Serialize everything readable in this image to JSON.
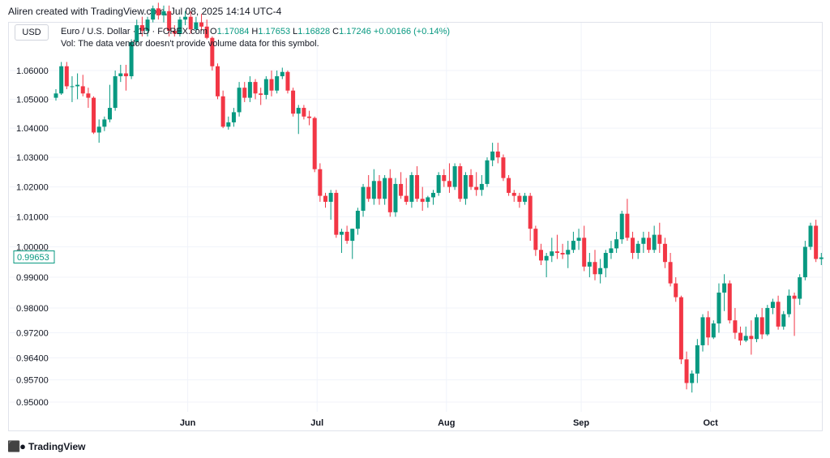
{
  "header": {
    "text": "Aliren created with TradingView.com, Jul 08, 2025 14:14 UTC-4"
  },
  "axis_currency": "USD",
  "legend": {
    "symbol": "Euro / U.S. Dollar · 1D · FOREX.com",
    "open_label": "O",
    "open_value": "1.17084",
    "high_label": "H",
    "high_value": "1.17653",
    "low_label": "L",
    "low_value": "1.16828",
    "close_label": "C",
    "close_value": "1.17246",
    "change": "+0.00166 (+0.14%)",
    "volume_note": "Vol: The data vendor doesn't provide volume data for this symbol."
  },
  "footer": {
    "brand": "TradingView",
    "icon": "tradingview-logo-icon"
  },
  "colors": {
    "up": "#089981",
    "down": "#f23645",
    "grid": "#f0f3fa",
    "last_price": "#089981"
  },
  "chart_data": {
    "type": "candlestick",
    "x_labels": [
      {
        "label": "Jun",
        "index": 24
      },
      {
        "label": "Jul",
        "index": 48
      },
      {
        "label": "Aug",
        "index": 72
      },
      {
        "label": "Sep",
        "index": 97
      },
      {
        "label": "Oct",
        "index": 121
      }
    ],
    "y_ticks": [
      {
        "label": "1.06000",
        "value": 1.06
      },
      {
        "label": "1.05000",
        "value": 1.05
      },
      {
        "label": "1.04000",
        "value": 1.04
      },
      {
        "label": "1.03000",
        "value": 1.03
      },
      {
        "label": "1.02000",
        "value": 1.02
      },
      {
        "label": "1.01000",
        "value": 1.01
      },
      {
        "label": "1.00000",
        "value": 1.0
      },
      {
        "label": "0.99000",
        "value": 0.99
      },
      {
        "label": "0.98000",
        "value": 0.98
      },
      {
        "label": "0.97200",
        "value": 0.972
      },
      {
        "label": "0.96400",
        "value": 0.964
      },
      {
        "label": "0.95700",
        "value": 0.957
      },
      {
        "label": "0.95000",
        "value": 0.95
      }
    ],
    "last_price": "0.99653",
    "last_price_value": 0.99653,
    "scale": "log",
    "grid": true,
    "candles": [
      [
        1.0505,
        1.0535,
        1.0495,
        1.052
      ],
      [
        1.052,
        1.063,
        1.0515,
        1.0615
      ],
      [
        1.0615,
        1.063,
        1.0535,
        1.0545
      ],
      [
        1.0545,
        1.058,
        1.049,
        1.0545
      ],
      [
        1.0545,
        1.059,
        1.05,
        1.055
      ],
      [
        1.0545,
        1.0585,
        1.051,
        1.052
      ],
      [
        1.052,
        1.054,
        1.047,
        1.0505
      ],
      [
        1.0505,
        1.051,
        1.038,
        1.0385
      ],
      [
        1.0385,
        1.043,
        1.035,
        1.0405
      ],
      [
        1.0405,
        1.044,
        1.039,
        1.043
      ],
      [
        1.043,
        1.055,
        1.042,
        1.047
      ],
      [
        1.047,
        1.06,
        1.046,
        1.058
      ],
      [
        1.058,
        1.062,
        1.056,
        1.059
      ],
      [
        1.059,
        1.062,
        1.053,
        1.058
      ],
      [
        1.058,
        1.071,
        1.057,
        1.07
      ],
      [
        1.07,
        1.078,
        1.069,
        1.076
      ],
      [
        1.076,
        1.079,
        1.072,
        1.074
      ],
      [
        1.074,
        1.079,
        1.072,
        1.078
      ],
      [
        1.078,
        1.083,
        1.077,
        1.082
      ],
      [
        1.082,
        1.084,
        1.078,
        1.0795
      ],
      [
        1.0795,
        1.083,
        1.077,
        1.081
      ],
      [
        1.081,
        1.083,
        1.072,
        1.074
      ],
      [
        1.074,
        1.076,
        1.072,
        1.073
      ],
      [
        1.073,
        1.079,
        1.072,
        1.078
      ],
      [
        1.078,
        1.081,
        1.076,
        1.079
      ],
      [
        1.079,
        1.081,
        1.073,
        1.0745
      ],
      [
        1.0745,
        1.079,
        1.0735,
        1.077
      ],
      [
        1.077,
        1.08,
        1.074,
        1.0755
      ],
      [
        1.0755,
        1.078,
        1.071,
        1.0715
      ],
      [
        1.0715,
        1.072,
        1.06,
        1.0615
      ],
      [
        1.0615,
        1.0625,
        1.05,
        1.051
      ],
      [
        1.051,
        1.053,
        1.04,
        1.0405
      ],
      [
        1.0405,
        1.044,
        1.0395,
        1.042
      ],
      [
        1.042,
        1.047,
        1.0405,
        1.0455
      ],
      [
        1.0455,
        1.056,
        1.044,
        1.054
      ],
      [
        1.054,
        1.056,
        1.049,
        1.0505
      ],
      [
        1.0505,
        1.058,
        1.049,
        1.056
      ],
      [
        1.056,
        1.057,
        1.05,
        1.052
      ],
      [
        1.052,
        1.054,
        1.048,
        1.0515
      ],
      [
        1.0515,
        1.058,
        1.05,
        1.057
      ],
      [
        1.057,
        1.06,
        1.051,
        1.053
      ],
      [
        1.053,
        1.06,
        1.052,
        1.058
      ],
      [
        1.058,
        1.061,
        1.057,
        1.0595
      ],
      [
        1.0595,
        1.06,
        1.052,
        1.053
      ],
      [
        1.053,
        1.054,
        1.044,
        1.045
      ],
      [
        1.045,
        1.048,
        1.038,
        1.047
      ],
      [
        1.047,
        1.048,
        1.043,
        1.044
      ],
      [
        1.044,
        1.046,
        1.041,
        1.0435
      ],
      [
        1.0435,
        1.044,
        1.025,
        1.026
      ],
      [
        1.026,
        1.028,
        1.015,
        1.017
      ],
      [
        1.017,
        1.018,
        1.013,
        1.015
      ],
      [
        1.015,
        1.019,
        1.009,
        1.018
      ],
      [
        1.018,
        1.019,
        1.003,
        1.004
      ],
      [
        1.004,
        1.006,
        0.998,
        1.005
      ],
      [
        1.005,
        1.007,
        1.001,
        1.002
      ],
      [
        1.002,
        1.006,
        0.996,
        1.006
      ],
      [
        1.006,
        1.013,
        1.004,
        1.012
      ],
      [
        1.012,
        1.021,
        1.01,
        1.02
      ],
      [
        1.02,
        1.024,
        1.015,
        1.016
      ],
      [
        1.016,
        1.026,
        1.014,
        1.022
      ],
      [
        1.022,
        1.024,
        1.014,
        1.016
      ],
      [
        1.016,
        1.024,
        1.014,
        1.023
      ],
      [
        1.023,
        1.026,
        1.01,
        1.0115
      ],
      [
        1.0115,
        1.023,
        1.01,
        1.021
      ],
      [
        1.021,
        1.025,
        1.016,
        1.017
      ],
      [
        1.017,
        1.023,
        1.014,
        1.015
      ],
      [
        1.015,
        1.025,
        1.013,
        1.024
      ],
      [
        1.024,
        1.027,
        1.015,
        1.016
      ],
      [
        1.016,
        1.02,
        1.012,
        1.015
      ],
      [
        1.015,
        1.017,
        1.013,
        1.0165
      ],
      [
        1.0165,
        1.019,
        1.014,
        1.018
      ],
      [
        1.018,
        1.025,
        1.017,
        1.024
      ],
      [
        1.024,
        1.026,
        1.02,
        1.022
      ],
      [
        1.022,
        1.028,
        1.018,
        1.02
      ],
      [
        1.02,
        1.028,
        1.019,
        1.027
      ],
      [
        1.027,
        1.028,
        1.015,
        1.016
      ],
      [
        1.016,
        1.025,
        1.014,
        1.024
      ],
      [
        1.024,
        1.026,
        1.019,
        1.02
      ],
      [
        1.02,
        1.025,
        1.017,
        1.019
      ],
      [
        1.019,
        1.024,
        1.017,
        1.021
      ],
      [
        1.021,
        1.03,
        1.02,
        1.029
      ],
      [
        1.029,
        1.035,
        1.027,
        1.032
      ],
      [
        1.032,
        1.035,
        1.028,
        1.03
      ],
      [
        1.03,
        1.031,
        1.022,
        1.023
      ],
      [
        1.023,
        1.024,
        1.017,
        1.018
      ],
      [
        1.018,
        1.019,
        1.015,
        1.017
      ],
      [
        1.017,
        1.018,
        1.013,
        1.015
      ],
      [
        1.015,
        1.018,
        1.014,
        1.017
      ],
      [
        1.017,
        1.018,
        1.002,
        1.006
      ],
      [
        1.006,
        1.007,
        0.997,
        0.999
      ],
      [
        0.999,
        1.001,
        0.994,
        0.9955
      ],
      [
        0.9955,
        0.998,
        0.99,
        0.997
      ],
      [
        0.997,
        1.003,
        0.995,
        0.9985
      ],
      [
        0.9985,
        1.004,
        0.996,
        0.998
      ],
      [
        0.998,
        1.001,
        0.996,
        0.9975
      ],
      [
        0.9975,
        1.002,
        0.993,
        0.999
      ],
      [
        0.999,
        1.005,
        0.998,
        1.002
      ],
      [
        1.002,
        1.006,
        0.999,
        1.003
      ],
      [
        1.003,
        1.007,
        0.992,
        0.9935
      ],
      [
        0.9935,
        0.998,
        0.99,
        0.995
      ],
      [
        0.995,
        0.999,
        0.989,
        0.991
      ],
      [
        0.991,
        0.996,
        0.988,
        0.993
      ],
      [
        0.993,
        0.999,
        0.99,
        0.998
      ],
      [
        0.998,
        1.002,
        0.996,
        0.9995
      ],
      [
        0.9995,
        1.005,
        0.998,
        1.0025
      ],
      [
        1.0025,
        1.012,
        1.001,
        1.011
      ],
      [
        1.011,
        1.016,
        1.002,
        1.003
      ],
      [
        1.003,
        1.005,
        0.996,
        0.998
      ],
      [
        0.998,
        1.002,
        0.996,
        1.001
      ],
      [
        1.001,
        1.005,
        0.998,
        1.003
      ],
      [
        1.003,
        1.005,
        0.998,
        0.999
      ],
      [
        0.999,
        1.007,
        0.998,
        1.004
      ],
      [
        1.004,
        1.008,
        0.998,
        1.001
      ],
      [
        1.001,
        1.003,
        0.993,
        0.995
      ],
      [
        0.995,
        0.998,
        0.987,
        0.988
      ],
      [
        0.988,
        0.99,
        0.982,
        0.9835
      ],
      [
        0.9835,
        0.984,
        0.962,
        0.9635
      ],
      [
        0.9635,
        0.966,
        0.954,
        0.956
      ],
      [
        0.956,
        0.96,
        0.953,
        0.959
      ],
      [
        0.959,
        0.97,
        0.956,
        0.968
      ],
      [
        0.968,
        0.978,
        0.966,
        0.977
      ],
      [
        0.977,
        0.979,
        0.968,
        0.9705
      ],
      [
        0.9705,
        0.976,
        0.97,
        0.975
      ],
      [
        0.975,
        0.988,
        0.972,
        0.985
      ],
      [
        0.985,
        0.991,
        0.979,
        0.988
      ],
      [
        0.988,
        0.989,
        0.975,
        0.976
      ],
      [
        0.976,
        0.98,
        0.97,
        0.972
      ],
      [
        0.972,
        0.974,
        0.968,
        0.9695
      ],
      [
        0.9695,
        0.974,
        0.969,
        0.971
      ],
      [
        0.971,
        0.976,
        0.965,
        0.97
      ],
      [
        0.97,
        0.978,
        0.969,
        0.977
      ],
      [
        0.977,
        0.98,
        0.97,
        0.9715
      ],
      [
        0.9715,
        0.981,
        0.971,
        0.98
      ],
      [
        0.98,
        0.983,
        0.978,
        0.982
      ],
      [
        0.982,
        0.984,
        0.973,
        0.974
      ],
      [
        0.974,
        0.979,
        0.973,
        0.978
      ],
      [
        0.978,
        0.986,
        0.977,
        0.984
      ],
      [
        0.984,
        0.985,
        0.971,
        0.983
      ],
      [
        0.983,
        0.991,
        0.981,
        0.99
      ],
      [
        0.99,
        1.002,
        0.989,
        1.0
      ],
      [
        1.0,
        1.008,
        0.999,
        1.007
      ],
      [
        1.007,
        1.009,
        0.995,
        0.996
      ],
      [
        0.996,
        0.998,
        0.994,
        0.9965
      ]
    ]
  }
}
